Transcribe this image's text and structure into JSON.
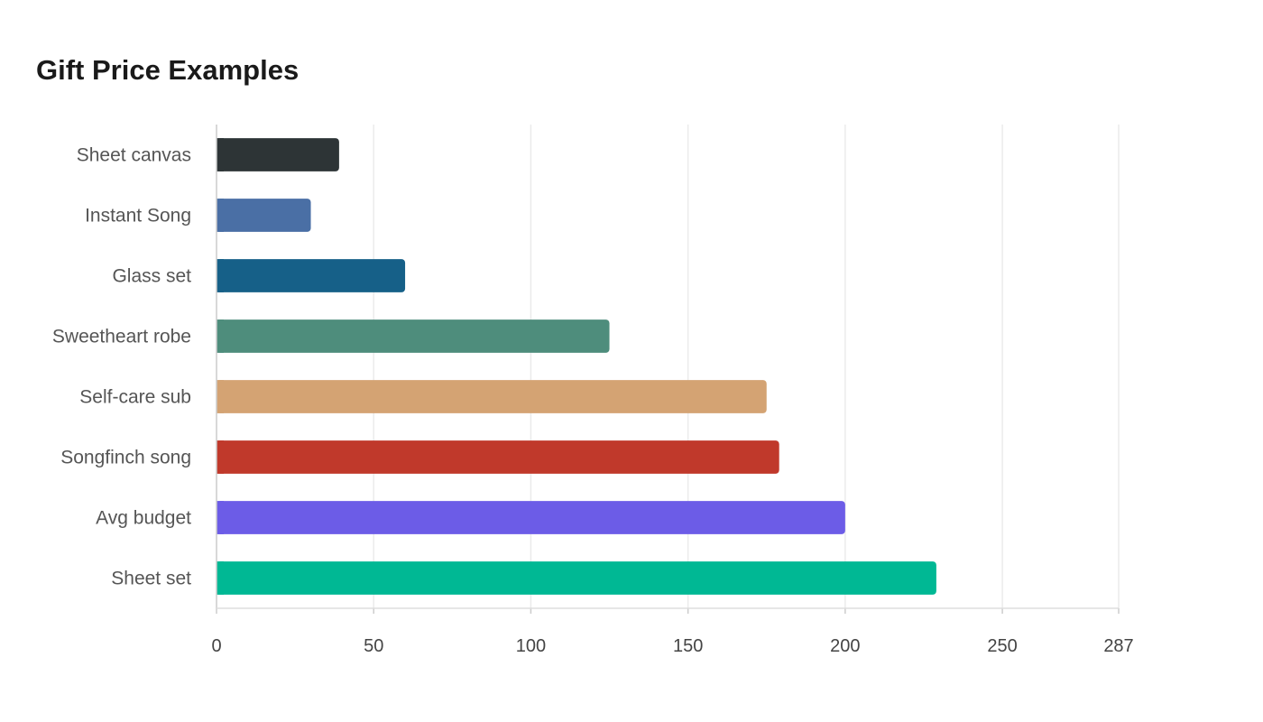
{
  "chart_data": {
    "type": "bar",
    "orientation": "horizontal",
    "title": "Gift Price Examples",
    "xlabel": "",
    "ylabel": "",
    "categories": [
      "Sheet canvas",
      "Instant Song",
      "Glass set",
      "Sweetheart robe",
      "Self-care sub",
      "Songfinch song",
      "Avg budget",
      "Sheet set"
    ],
    "values": [
      39,
      30,
      60,
      125,
      175,
      179,
      200,
      229
    ],
    "colors": [
      "#2d3436",
      "#4a6fa5",
      "#166088",
      "#4e8d7c",
      "#d4a373",
      "#c0392b",
      "#6c5ce7",
      "#00b894"
    ],
    "xlim": [
      0,
      287
    ],
    "xticks": [
      0,
      50,
      100,
      150,
      200,
      250,
      287
    ],
    "grid": true,
    "legend": "none"
  }
}
